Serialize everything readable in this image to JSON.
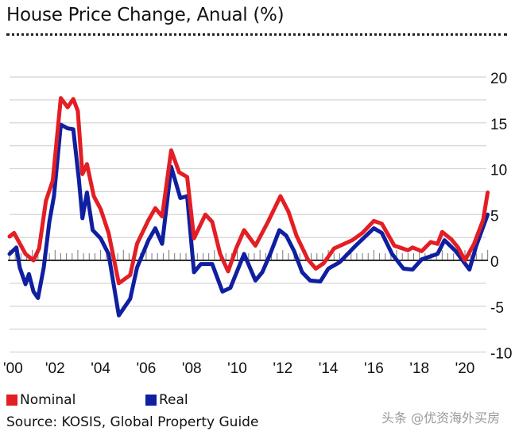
{
  "title": "House Price Change, Anual (%)",
  "source": "Source: KOSIS, Global Property Guide",
  "watermark": "头条 @优资海外买房",
  "chart_data": {
    "type": "line",
    "title": "House Price Change, Anual (%)",
    "xlabel": "",
    "ylabel": "",
    "x_tick_labels": [
      "'00",
      "'02",
      "'04",
      "'06",
      "'08",
      "'10",
      "'12",
      "'14",
      "'16",
      "'18",
      "'20"
    ],
    "x_ticks": [
      2000,
      2002,
      2004,
      2006,
      2008,
      2010,
      2012,
      2014,
      2016,
      2018,
      2020
    ],
    "xlim": [
      2000,
      2021
    ],
    "y_ticks": [
      20,
      15,
      10,
      5,
      0,
      -5,
      -10
    ],
    "ylim": [
      -10,
      20
    ],
    "grid": true,
    "y_axis_side": "right",
    "legend_placement": "bottom-left",
    "series": [
      {
        "name": "Nominal",
        "color": "#e31e24",
        "points": [
          [
            2000.0,
            2.6
          ],
          [
            2000.2,
            3.0
          ],
          [
            2000.7,
            0.7
          ],
          [
            2001.05,
            0
          ],
          [
            2001.3,
            1.3
          ],
          [
            2001.6,
            6.5
          ],
          [
            2001.9,
            8.7
          ],
          [
            2002.25,
            17.7
          ],
          [
            2002.55,
            16.7
          ],
          [
            2002.8,
            17.6
          ],
          [
            2003.0,
            16.3
          ],
          [
            2003.2,
            9.4
          ],
          [
            2003.4,
            10.5
          ],
          [
            2003.7,
            7.0
          ],
          [
            2004.0,
            5.6
          ],
          [
            2004.35,
            3.0
          ],
          [
            2004.8,
            -2.5
          ],
          [
            2005.3,
            -1.6
          ],
          [
            2005.6,
            1.8
          ],
          [
            2006.1,
            4.4
          ],
          [
            2006.4,
            5.7
          ],
          [
            2006.7,
            4.8
          ],
          [
            2007.1,
            12.0
          ],
          [
            2007.45,
            9.6
          ],
          [
            2007.8,
            9.1
          ],
          [
            2008.1,
            2.4
          ],
          [
            2008.6,
            5.0
          ],
          [
            2008.9,
            4.2
          ],
          [
            2009.25,
            0.7
          ],
          [
            2009.6,
            -1.2
          ],
          [
            2009.95,
            1.3
          ],
          [
            2010.3,
            3.3
          ],
          [
            2010.8,
            1.6
          ],
          [
            2011.35,
            4.2
          ],
          [
            2011.9,
            7.0
          ],
          [
            2012.25,
            5.3
          ],
          [
            2012.6,
            2.7
          ],
          [
            2013.1,
            0.1
          ],
          [
            2013.45,
            -0.9
          ],
          [
            2013.8,
            -0.3
          ],
          [
            2014.25,
            1.3
          ],
          [
            2015.05,
            2.2
          ],
          [
            2015.5,
            3.0
          ],
          [
            2016.0,
            4.3
          ],
          [
            2016.35,
            4.0
          ],
          [
            2016.9,
            1.6
          ],
          [
            2017.5,
            1.1
          ],
          [
            2017.7,
            1.4
          ],
          [
            2018.1,
            1.0
          ],
          [
            2018.5,
            2.0
          ],
          [
            2018.8,
            1.8
          ],
          [
            2019.0,
            3.1
          ],
          [
            2019.4,
            2.3
          ],
          [
            2019.7,
            1.4
          ],
          [
            2020.0,
            0
          ],
          [
            2020.4,
            1.8
          ],
          [
            2020.8,
            4.4
          ],
          [
            2021.0,
            7.4
          ]
        ]
      },
      {
        "name": "Real",
        "color": "#0f1fa0",
        "points": [
          [
            2000.0,
            0.7
          ],
          [
            2000.3,
            1.4
          ],
          [
            2000.45,
            -0.8
          ],
          [
            2000.7,
            -2.6
          ],
          [
            2000.85,
            -1.5
          ],
          [
            2001.05,
            -3.4
          ],
          [
            2001.25,
            -4.1
          ],
          [
            2001.5,
            -0.8
          ],
          [
            2001.75,
            4.2
          ],
          [
            2001.95,
            7.0
          ],
          [
            2002.25,
            14.8
          ],
          [
            2002.55,
            14.4
          ],
          [
            2002.8,
            14.3
          ],
          [
            2003.05,
            8.7
          ],
          [
            2003.2,
            4.6
          ],
          [
            2003.4,
            7.4
          ],
          [
            2003.65,
            3.3
          ],
          [
            2004.0,
            2.4
          ],
          [
            2004.35,
            0.7
          ],
          [
            2004.8,
            -6.0
          ],
          [
            2005.3,
            -4.2
          ],
          [
            2005.6,
            -0.8
          ],
          [
            2006.1,
            2.2
          ],
          [
            2006.4,
            3.5
          ],
          [
            2006.7,
            1.8
          ],
          [
            2007.1,
            10.2
          ],
          [
            2007.5,
            6.8
          ],
          [
            2007.8,
            7.0
          ],
          [
            2008.1,
            -1.3
          ],
          [
            2008.4,
            -0.4
          ],
          [
            2008.9,
            -0.4
          ],
          [
            2009.35,
            -3.4
          ],
          [
            2009.7,
            -3.0
          ],
          [
            2010.3,
            0.7
          ],
          [
            2010.8,
            -2.2
          ],
          [
            2011.1,
            -1.3
          ],
          [
            2011.45,
            0.7
          ],
          [
            2011.85,
            3.3
          ],
          [
            2012.15,
            2.7
          ],
          [
            2012.5,
            1.0
          ],
          [
            2012.85,
            -1.3
          ],
          [
            2013.2,
            -2.2
          ],
          [
            2013.65,
            -2.3
          ],
          [
            2014.0,
            -0.9
          ],
          [
            2014.5,
            -0.2
          ],
          [
            2015.2,
            1.6
          ],
          [
            2016.0,
            3.5
          ],
          [
            2016.35,
            3.0
          ],
          [
            2016.8,
            0.7
          ],
          [
            2017.3,
            -0.9
          ],
          [
            2017.7,
            -1.0
          ],
          [
            2018.1,
            0.1
          ],
          [
            2018.8,
            0.7
          ],
          [
            2019.1,
            2.2
          ],
          [
            2019.6,
            1.0
          ],
          [
            2020.2,
            -1.0
          ],
          [
            2020.5,
            1.6
          ],
          [
            2021.0,
            5.0
          ]
        ]
      }
    ]
  }
}
